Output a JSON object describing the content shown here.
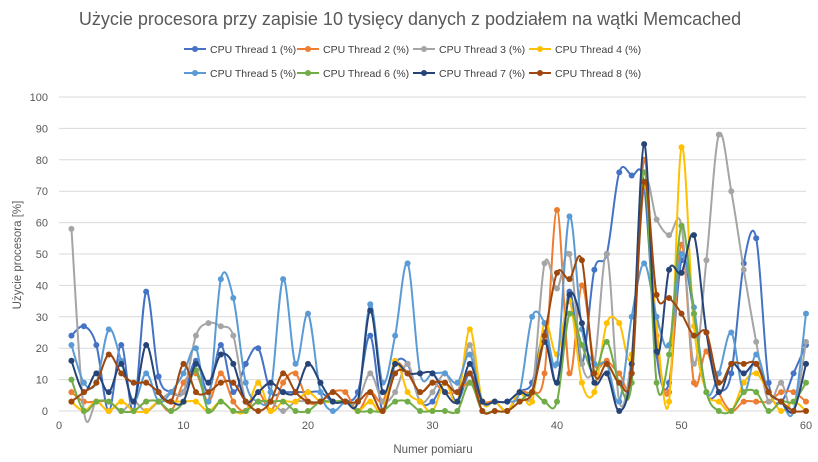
{
  "chart_data": {
    "type": "line",
    "title": "Użycie procesora przy zapisie 10 tysięcy danych z podziałem na wątki Memcached",
    "xlabel": "Numer pomiaru",
    "ylabel": "Użycie procesora [%]",
    "xlim": [
      0,
      60
    ],
    "ylim": [
      0,
      100
    ],
    "xticks": [
      0,
      10,
      20,
      30,
      40,
      50,
      60
    ],
    "yticks": [
      0,
      10,
      20,
      30,
      40,
      50,
      60,
      70,
      80,
      90,
      100
    ],
    "grid": true,
    "legend_position": "top",
    "smooth": true,
    "x": [
      1,
      2,
      3,
      4,
      5,
      6,
      7,
      8,
      9,
      10,
      11,
      12,
      13,
      14,
      15,
      16,
      17,
      18,
      19,
      20,
      21,
      22,
      23,
      24,
      25,
      26,
      27,
      28,
      29,
      30,
      31,
      32,
      33,
      34,
      35,
      36,
      37,
      38,
      39,
      40,
      41,
      42,
      43,
      44,
      45,
      46,
      47,
      48,
      49,
      50,
      51,
      52,
      53,
      54,
      55,
      56,
      57,
      58,
      59,
      60
    ],
    "series": [
      {
        "name": "CPU Thread 1 (%)",
        "color": "#4472c4",
        "values": [
          24,
          27,
          21,
          0,
          21,
          0,
          38,
          11,
          6,
          6,
          16,
          6,
          21,
          6,
          15,
          20,
          6,
          6,
          6,
          6,
          6,
          3,
          3,
          6,
          24,
          0,
          15,
          15,
          3,
          3,
          9,
          3,
          12,
          3,
          3,
          0,
          6,
          9,
          25,
          9,
          38,
          15,
          45,
          50,
          76,
          75,
          72,
          18,
          9,
          48,
          31,
          6,
          6,
          12,
          47,
          55,
          9,
          3,
          12,
          21
        ]
      },
      {
        "name": "CPU Thread 2 (%)",
        "color": "#ed7d31",
        "values": [
          6,
          3,
          3,
          3,
          0,
          0,
          3,
          3,
          0,
          9,
          12,
          3,
          12,
          3,
          0,
          6,
          0,
          9,
          12,
          3,
          3,
          6,
          6,
          0,
          6,
          3,
          15,
          12,
          6,
          9,
          6,
          6,
          9,
          3,
          3,
          0,
          6,
          6,
          12,
          64,
          12,
          40,
          15,
          16,
          12,
          12,
          80,
          24,
          6,
          53,
          9,
          19,
          6,
          0,
          3,
          3,
          3,
          6,
          6,
          3
        ]
      },
      {
        "name": "CPU Thread 3 (%)",
        "color": "#a5a5a5",
        "values": [
          58,
          0,
          3,
          3,
          0,
          3,
          0,
          3,
          6,
          6,
          24,
          28,
          27,
          24,
          3,
          3,
          3,
          0,
          3,
          3,
          3,
          6,
          3,
          3,
          12,
          3,
          6,
          15,
          3,
          6,
          12,
          6,
          21,
          3,
          3,
          0,
          6,
          6,
          47,
          39,
          50,
          15,
          15,
          50,
          3,
          18,
          72,
          61,
          56,
          59,
          15,
          48,
          88,
          70,
          45,
          22,
          3,
          9,
          0,
          22
        ]
      },
      {
        "name": "CPU Thread 4 (%)",
        "color": "#ffc000",
        "values": [
          3,
          0,
          3,
          0,
          3,
          0,
          0,
          3,
          3,
          3,
          3,
          0,
          3,
          0,
          0,
          9,
          0,
          3,
          3,
          6,
          3,
          3,
          3,
          0,
          3,
          0,
          16,
          6,
          3,
          0,
          9,
          3,
          26,
          3,
          3,
          0,
          6,
          3,
          28,
          18,
          35,
          9,
          6,
          28,
          28,
          18,
          72,
          27,
          3,
          84,
          27,
          6,
          3,
          0,
          9,
          12,
          6,
          0,
          3,
          0
        ]
      },
      {
        "name": "CPU Thread 5 (%)",
        "color": "#5b9bd5",
        "values": [
          21,
          9,
          9,
          26,
          16,
          3,
          12,
          3,
          6,
          12,
          20,
          3,
          42,
          36,
          9,
          3,
          6,
          42,
          15,
          31,
          6,
          0,
          3,
          3,
          34,
          9,
          24,
          47,
          12,
          12,
          12,
          9,
          18,
          3,
          3,
          3,
          6,
          30,
          28,
          15,
          62,
          26,
          15,
          15,
          3,
          30,
          47,
          30,
          21,
          50,
          33,
          6,
          12,
          25,
          6,
          18,
          6,
          3,
          0,
          31
        ]
      },
      {
        "name": "CPU Thread 6 (%)",
        "color": "#70ad47",
        "values": [
          10,
          0,
          3,
          3,
          0,
          0,
          3,
          3,
          0,
          3,
          13,
          0,
          3,
          0,
          0,
          3,
          3,
          3,
          0,
          0,
          3,
          3,
          3,
          0,
          0,
          0,
          3,
          3,
          0,
          0,
          0,
          0,
          9,
          0,
          0,
          0,
          3,
          6,
          3,
          3,
          31,
          21,
          12,
          22,
          9,
          9,
          76,
          9,
          18,
          59,
          31,
          6,
          0,
          0,
          6,
          6,
          0,
          3,
          3,
          9
        ]
      },
      {
        "name": "CPU Thread 7 (%)",
        "color": "#264478",
        "values": [
          16,
          6,
          12,
          6,
          15,
          3,
          21,
          6,
          3,
          3,
          15,
          9,
          18,
          15,
          3,
          6,
          9,
          6,
          6,
          15,
          9,
          3,
          3,
          3,
          32,
          6,
          15,
          12,
          12,
          12,
          6,
          3,
          15,
          3,
          3,
          3,
          6,
          6,
          22,
          9,
          37,
          28,
          9,
          12,
          0,
          15,
          85,
          19,
          45,
          44,
          56,
          25,
          6,
          15,
          12,
          15,
          6,
          3,
          0,
          15
        ]
      },
      {
        "name": "CPU Thread 8 (%)",
        "color": "#9e480e",
        "values": [
          3,
          6,
          9,
          18,
          12,
          9,
          9,
          6,
          3,
          15,
          6,
          6,
          9,
          9,
          3,
          0,
          3,
          12,
          6,
          3,
          3,
          6,
          3,
          3,
          6,
          0,
          12,
          12,
          6,
          9,
          9,
          6,
          12,
          0,
          0,
          0,
          3,
          6,
          24,
          44,
          42,
          48,
          12,
          15,
          9,
          12,
          73,
          37,
          36,
          31,
          24,
          25,
          9,
          15,
          15,
          15,
          6,
          3,
          0,
          0
        ]
      }
    ]
  }
}
